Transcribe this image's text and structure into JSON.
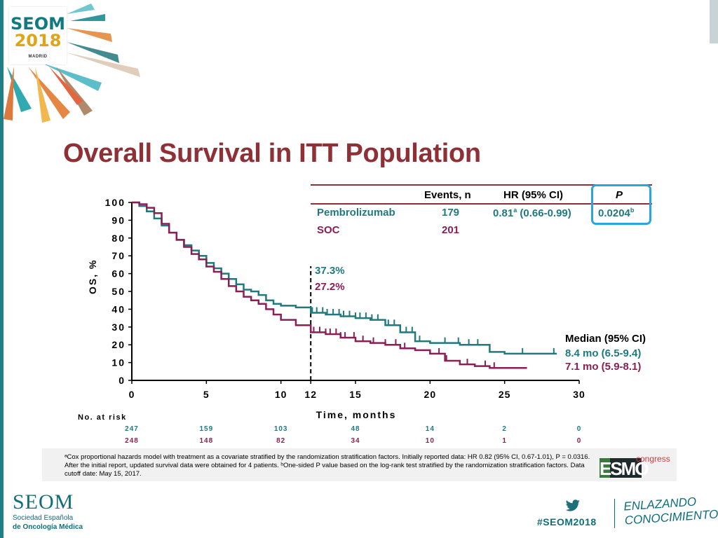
{
  "branding": {
    "logo_line1": "SEOM",
    "logo_line2": "2018",
    "logo_city": "MADRID",
    "footer_name": "SEOM",
    "footer_sub1": "Sociedad Española",
    "footer_sub2": "de Oncología Médica",
    "hashtag": "#SEOM2018",
    "tagline1": "ENLAZANDO",
    "tagline2": "CONOCIMIENTO",
    "esmo_word": "ESMO",
    "esmo_sup": "congress"
  },
  "slide": {
    "title": "Overall Survival in ITT Population",
    "table": {
      "headers": [
        "Events, n",
        "HR (95% CI)",
        "P"
      ],
      "rows": [
        {
          "arm": "Pembrolizumab",
          "events": "179",
          "hr": "0.81",
          "hr_sup": "a",
          "hr_ci": " (0.66-0.99)",
          "p": "0.0204",
          "p_sup": "b"
        },
        {
          "arm": "SOC",
          "events": "201",
          "hr": "",
          "hr_sup": "",
          "hr_ci": "",
          "p": "",
          "p_sup": ""
        }
      ]
    },
    "landmark": {
      "pembro": "37.3%",
      "soc": "27.2%"
    },
    "median": {
      "title": "Median (95% CI)",
      "pembro": "8.4 mo (6.5-9.4)",
      "soc": "7.1 mo (5.9-8.1)"
    },
    "at_risk": {
      "title": "No. at risk",
      "times": [
        0,
        5,
        10,
        15,
        20,
        25,
        30
      ],
      "pembro": [
        "247",
        "159",
        "103",
        "48",
        "14",
        "2",
        "0"
      ],
      "soc": [
        "248",
        "148",
        "82",
        "34",
        "10",
        "1",
        "0"
      ]
    },
    "footnote": "ᵃCox proportional hazards model with treatment as a covariate stratified by the randomization stratification factors. Initially reported data: HR 0.82 (95% CI, 0.67-1.01), P = 0.0316. After the initial report, updated survival data were obtained for 4 patients. ᵇOne-sided P value based on the log-rank test stratified by the randomization stratification factors. Data cutoff date: May 15, 2017."
  },
  "colors": {
    "pembro": "#1f7a80",
    "soc": "#8a1f55",
    "title": "#8f3037",
    "highlight": "#2aa5de"
  },
  "chart_data": {
    "type": "line",
    "title": "",
    "xlabel": "Time, months",
    "ylabel": "OS, %",
    "xlim": [
      0,
      30
    ],
    "ylim": [
      0,
      100
    ],
    "xticks": [
      "0",
      "5",
      "10",
      "12",
      "15",
      "20",
      "25",
      "30"
    ],
    "yticks": [
      "0",
      "10",
      "20",
      "30",
      "40",
      "50",
      "60",
      "70",
      "80",
      "90",
      "100"
    ],
    "landmark_x": 12,
    "series": [
      {
        "name": "Pembrolizumab",
        "color": "#1f7a80",
        "points": [
          [
            0,
            100
          ],
          [
            0.5,
            98
          ],
          [
            1,
            95
          ],
          [
            1.5,
            91
          ],
          [
            2,
            87
          ],
          [
            2.5,
            83
          ],
          [
            3,
            79
          ],
          [
            3.5,
            76
          ],
          [
            4,
            73
          ],
          [
            4.5,
            70
          ],
          [
            5,
            66
          ],
          [
            5.5,
            63
          ],
          [
            6,
            60
          ],
          [
            6.5,
            57
          ],
          [
            7,
            54
          ],
          [
            7.5,
            51
          ],
          [
            8,
            50
          ],
          [
            8.5,
            48
          ],
          [
            9,
            45
          ],
          [
            9.5,
            43
          ],
          [
            10,
            42
          ],
          [
            11,
            41
          ],
          [
            12,
            38
          ],
          [
            13,
            37
          ],
          [
            14,
            36
          ],
          [
            15,
            35
          ],
          [
            16,
            34
          ],
          [
            17,
            31
          ],
          [
            18,
            27
          ],
          [
            19,
            22
          ],
          [
            20,
            21
          ],
          [
            21,
            21
          ],
          [
            22,
            20
          ],
          [
            24,
            16
          ],
          [
            25,
            15
          ],
          [
            26,
            15
          ],
          [
            28,
            15
          ],
          [
            28.5,
            15
          ]
        ]
      },
      {
        "name": "SOC",
        "color": "#8a1f55",
        "points": [
          [
            0,
            100
          ],
          [
            0.5,
            99
          ],
          [
            1,
            97
          ],
          [
            1.5,
            94
          ],
          [
            2,
            88
          ],
          [
            2.5,
            83
          ],
          [
            3,
            79
          ],
          [
            3.5,
            75
          ],
          [
            4,
            71
          ],
          [
            4.5,
            68
          ],
          [
            5,
            64
          ],
          [
            5.5,
            61
          ],
          [
            6,
            57
          ],
          [
            6.5,
            53
          ],
          [
            7,
            50
          ],
          [
            7.5,
            47
          ],
          [
            8,
            45
          ],
          [
            8.5,
            43
          ],
          [
            9,
            40
          ],
          [
            9.5,
            37
          ],
          [
            10,
            34
          ],
          [
            11,
            31
          ],
          [
            12,
            27
          ],
          [
            13,
            26
          ],
          [
            14,
            24
          ],
          [
            15,
            22
          ],
          [
            16,
            21
          ],
          [
            17,
            20
          ],
          [
            18,
            18
          ],
          [
            19,
            17
          ],
          [
            20,
            15
          ],
          [
            21,
            11
          ],
          [
            22,
            9
          ],
          [
            23,
            8
          ],
          [
            24,
            7
          ],
          [
            25,
            7
          ],
          [
            26,
            7
          ],
          [
            26.5,
            7
          ]
        ]
      }
    ],
    "censor_pembro": [
      12.1,
      12.4,
      12.8,
      13.1,
      13.5,
      13.9,
      14.2,
      14.6,
      15.0,
      15.3,
      15.7,
      16.1,
      16.5,
      17.2,
      17.6,
      18.0,
      18.4,
      18.8,
      19.3,
      21.0,
      21.9,
      22.6,
      23.2,
      24.0,
      26.2,
      28.3
    ],
    "censor_soc": [
      12.2,
      12.6,
      13.0,
      13.3,
      13.7,
      14.0,
      14.3,
      14.9,
      15.5,
      16.2,
      17.0,
      17.7,
      18.3,
      20.6,
      21.1,
      22.5,
      23.7,
      24.3
    ]
  }
}
